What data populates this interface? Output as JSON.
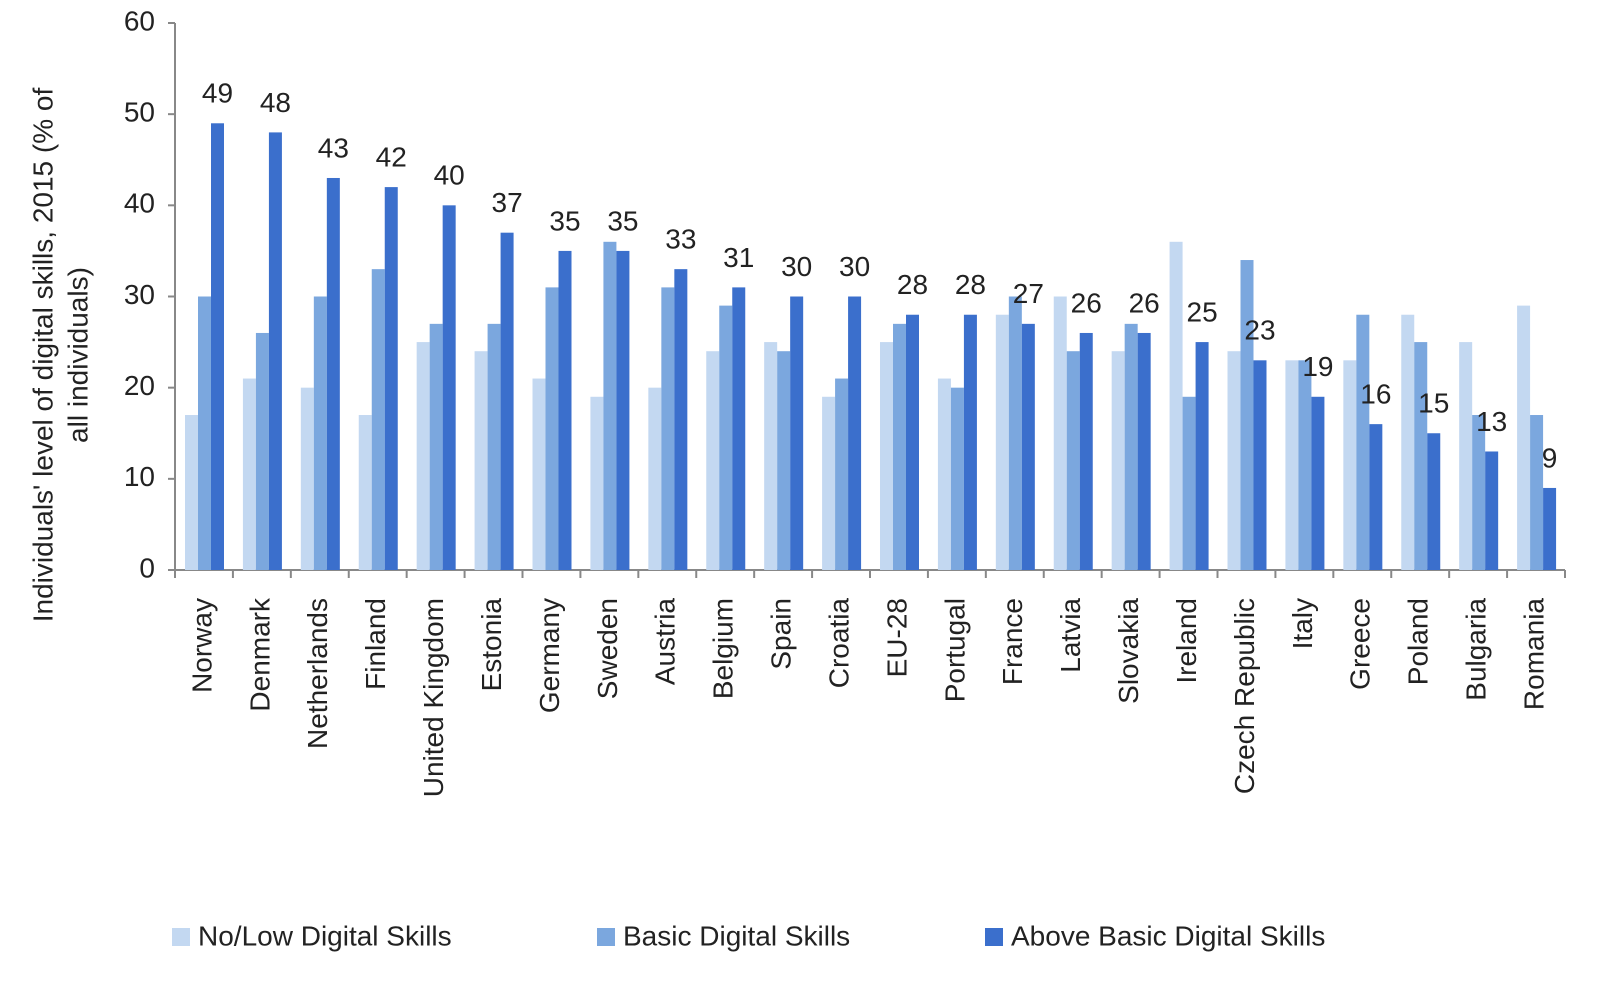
{
  "chart_data": {
    "type": "bar",
    "y_label": [
      "Individuals' level of digital skills, 2015 (% of",
      "all individuals)"
    ],
    "categories": [
      "Norway",
      "Denmark",
      "Netherlands",
      "Finland",
      "United Kingdom",
      "Estonia",
      "Germany",
      "Sweden",
      "Austria",
      "Belgium",
      "Spain",
      "Croatia",
      "EU-28",
      "Portugal",
      "France",
      "Latvia",
      "Slovakia",
      "Ireland",
      "Czech Republic",
      "Italy",
      "Greece",
      "Poland",
      "Bulgaria",
      "Romania"
    ],
    "series": [
      {
        "name": "No/Low Digital Skills",
        "color": "#c3d8f1",
        "values": [
          17,
          21,
          20,
          17,
          25,
          24,
          21,
          19,
          20,
          24,
          25,
          19,
          25,
          21,
          28,
          30,
          24,
          36,
          24,
          23,
          23,
          28,
          25,
          29
        ]
      },
      {
        "name": "Basic Digital Skills",
        "color": "#7ba7de",
        "values": [
          30,
          26,
          30,
          33,
          27,
          27,
          31,
          36,
          31,
          29,
          24,
          21,
          27,
          20,
          30,
          24,
          27,
          19,
          34,
          23,
          28,
          25,
          17,
          17
        ]
      },
      {
        "name": "Above Basic Digital Skills",
        "color": "#3b6fcc",
        "values": [
          49,
          48,
          43,
          42,
          40,
          37,
          35,
          35,
          33,
          31,
          30,
          30,
          28,
          28,
          27,
          26,
          26,
          25,
          23,
          19,
          16,
          15,
          13,
          9
        ]
      }
    ],
    "labeled_series": 2,
    "ylim": [
      0,
      60
    ],
    "yticks": [
      0,
      10,
      20,
      30,
      40,
      50,
      60
    ],
    "grid": false,
    "legend": "bottom"
  }
}
